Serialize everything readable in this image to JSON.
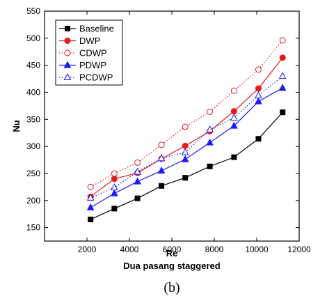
{
  "chart_data": {
    "type": "line",
    "xlabel": "Re",
    "xlabel2": "Dua pasang staggered",
    "ylabel": "Nu",
    "caption": "(b)",
    "xlim": [
      0,
      12000
    ],
    "ylim": [
      125,
      550
    ],
    "xticks": [
      2000,
      4000,
      6000,
      8000,
      10000,
      12000
    ],
    "yticks": [
      150,
      200,
      250,
      300,
      350,
      400,
      450,
      500,
      550
    ],
    "x": [
      2170,
      3290,
      4380,
      5510,
      6630,
      7790,
      8930,
      10080,
      11220
    ],
    "legend_position": "top-left",
    "grid": false,
    "series": [
      {
        "name": "Baseline",
        "color": "#000000",
        "marker": "square",
        "fill": true,
        "dash": "solid",
        "values": [
          165,
          185,
          204,
          227,
          242,
          263,
          280,
          314,
          363
        ]
      },
      {
        "name": "DWP",
        "color": "#e8191b",
        "marker": "circle",
        "fill": true,
        "dash": "solid",
        "values": [
          207,
          240,
          251,
          277,
          301,
          328,
          365,
          407,
          464
        ]
      },
      {
        "name": "CDWP",
        "color": "#e8191b",
        "marker": "circle",
        "fill": false,
        "dash": "dotted",
        "values": [
          225,
          250,
          270,
          303,
          336,
          364,
          403,
          442,
          496
        ]
      },
      {
        "name": "PDWP",
        "color": "#1a1aff",
        "marker": "triangle",
        "fill": true,
        "dash": "solid",
        "values": [
          187,
          213,
          235,
          255,
          276,
          307,
          338,
          383,
          408
        ]
      },
      {
        "name": "PCDWP",
        "color": "#1a1aff",
        "marker": "triangle",
        "fill": false,
        "dash": "dotted",
        "values": [
          205,
          224,
          253,
          278,
          289,
          331,
          353,
          394,
          430
        ]
      }
    ]
  }
}
